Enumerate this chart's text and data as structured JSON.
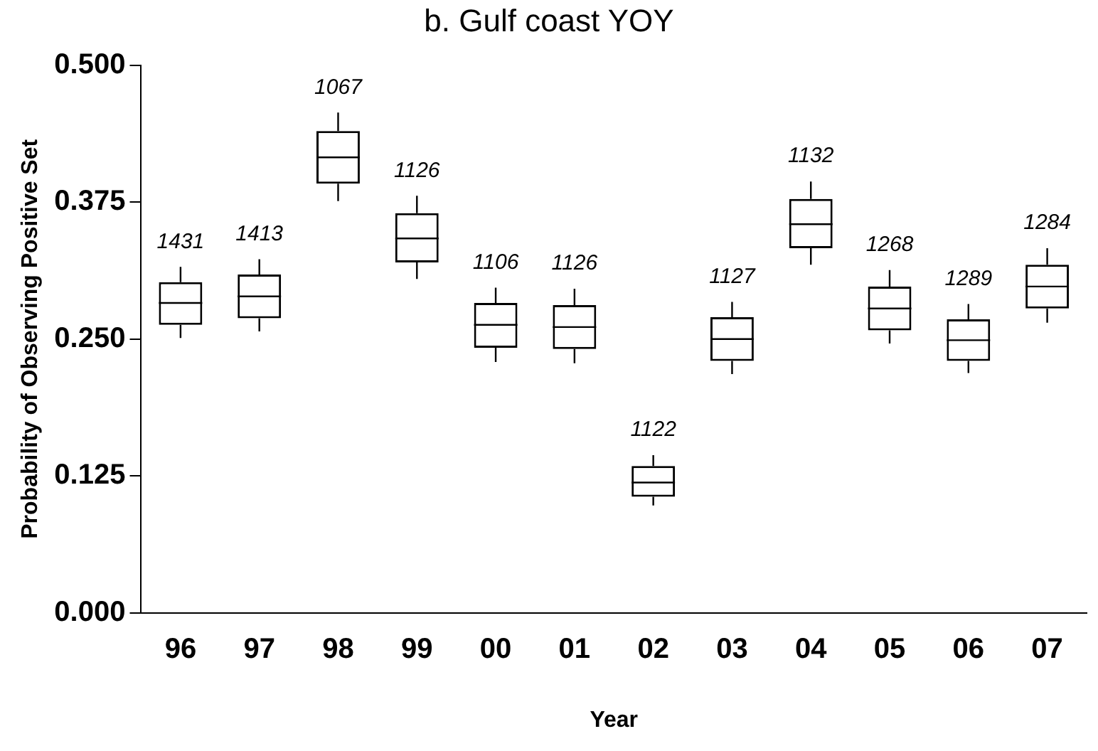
{
  "chart_data": {
    "type": "box",
    "title": "b.  Gulf coast YOY",
    "xlabel": "Year",
    "ylabel": "Probability of Observing Positive Set",
    "categories": [
      "96",
      "97",
      "98",
      "99",
      "00",
      "01",
      "02",
      "03",
      "04",
      "05",
      "06",
      "07"
    ],
    "boxes": [
      {
        "low": 0.251,
        "q1": 0.263,
        "median": 0.283,
        "q3": 0.302,
        "high": 0.316
      },
      {
        "low": 0.257,
        "q1": 0.269,
        "median": 0.289,
        "q3": 0.309,
        "high": 0.323
      },
      {
        "low": 0.376,
        "q1": 0.392,
        "median": 0.416,
        "q3": 0.44,
        "high": 0.457
      },
      {
        "low": 0.305,
        "q1": 0.32,
        "median": 0.342,
        "q3": 0.365,
        "high": 0.381
      },
      {
        "low": 0.229,
        "q1": 0.242,
        "median": 0.263,
        "q3": 0.283,
        "high": 0.297
      },
      {
        "low": 0.228,
        "q1": 0.241,
        "median": 0.261,
        "q3": 0.281,
        "high": 0.296
      },
      {
        "low": 0.098,
        "q1": 0.106,
        "median": 0.119,
        "q3": 0.134,
        "high": 0.144
      },
      {
        "low": 0.218,
        "q1": 0.23,
        "median": 0.25,
        "q3": 0.27,
        "high": 0.284
      },
      {
        "low": 0.318,
        "q1": 0.333,
        "median": 0.355,
        "q3": 0.378,
        "high": 0.394
      },
      {
        "low": 0.246,
        "q1": 0.258,
        "median": 0.278,
        "q3": 0.298,
        "high": 0.313
      },
      {
        "low": 0.219,
        "q1": 0.23,
        "median": 0.249,
        "q3": 0.268,
        "high": 0.282
      },
      {
        "low": 0.265,
        "q1": 0.278,
        "median": 0.298,
        "q3": 0.318,
        "high": 0.333
      }
    ],
    "color": "#000000",
    "ylim": [
      0,
      0.5
    ],
    "yticks": [
      {
        "value": 0,
        "label": "0.000"
      },
      {
        "value": 0.125,
        "label": "0.125"
      },
      {
        "value": 0.25,
        "label": "0.250"
      },
      {
        "value": 0.375,
        "label": "0.375"
      },
      {
        "value": 0.5,
        "label": "0.500"
      }
    ],
    "grid": false,
    "legend": false,
    "annotations": [
      {
        "text": "1431",
        "x": "96",
        "y": 0.316
      },
      {
        "text": "1413",
        "x": "97",
        "y": 0.323
      },
      {
        "text": "1067",
        "x": "98",
        "y": 0.457
      },
      {
        "text": "1126",
        "x": "99",
        "y": 0.381
      },
      {
        "text": "1106",
        "x": "00",
        "y": 0.297
      },
      {
        "text": "1126",
        "x": "01",
        "y": 0.296
      },
      {
        "text": "1122",
        "x": "02",
        "y": 0.144
      },
      {
        "text": "1127",
        "x": "03",
        "y": 0.284
      },
      {
        "text": "1132",
        "x": "04",
        "y": 0.394
      },
      {
        "text": "1268",
        "x": "05",
        "y": 0.313
      },
      {
        "text": "1289",
        "x": "06",
        "y": 0.282
      },
      {
        "text": "1284",
        "x": "07",
        "y": 0.333
      }
    ]
  }
}
